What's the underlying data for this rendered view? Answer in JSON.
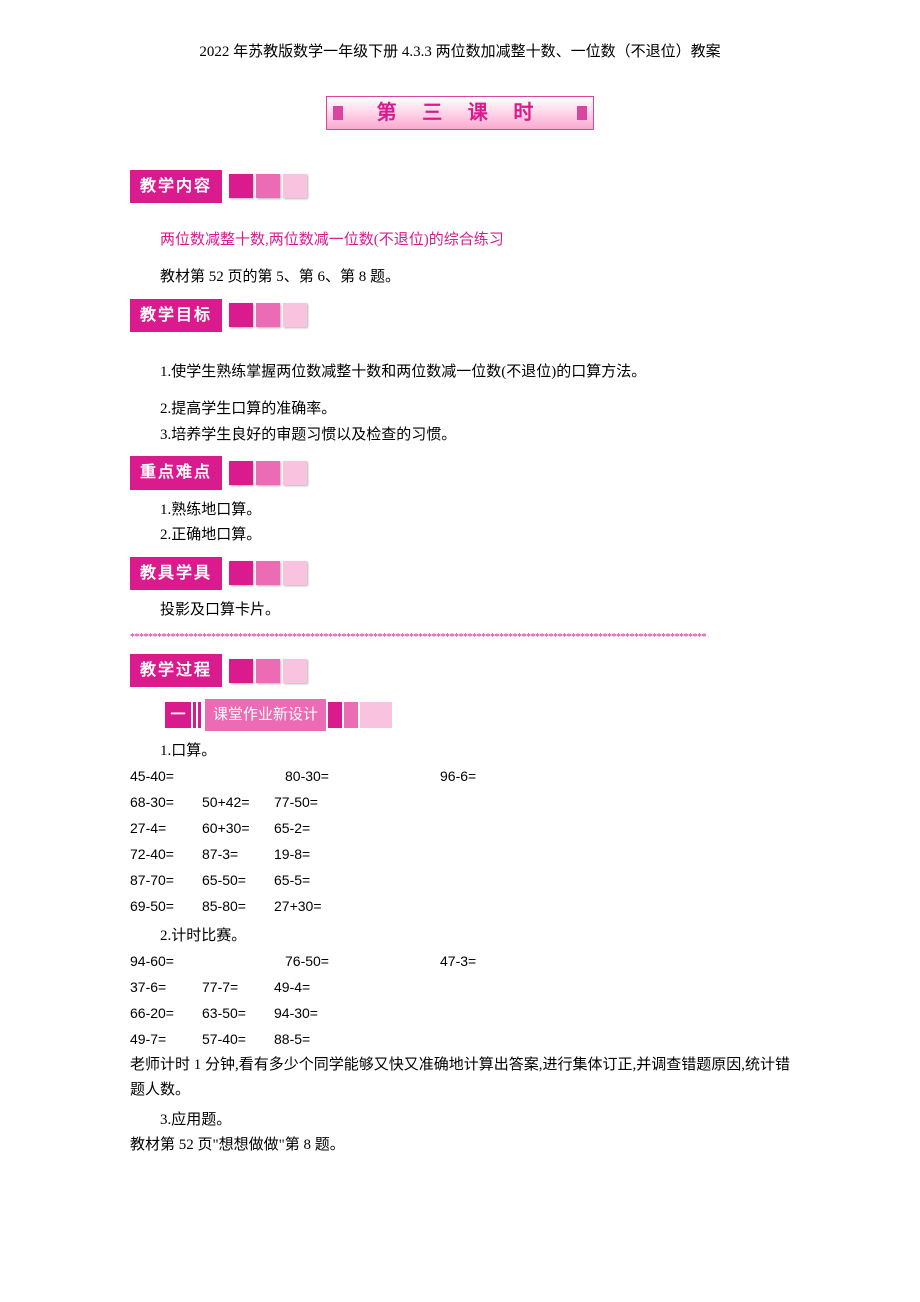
{
  "title": "2022 年苏教版数学一年级下册 4.3.3 两位数加减整十数、一位数（不退位）教案",
  "lesson_banner": "第 三 课 时",
  "sections": {
    "content_label": "教学内容",
    "goals_label": "教学目标",
    "keypoints_label": "重点难点",
    "tools_label": "教具学具",
    "process_label": "教学过程"
  },
  "subtitle": "两位数减整十数,两位数减一位数(不退位)的综合练习",
  "textbook_ref": "教材第 52 页的第 5、第 6、第 8 题。",
  "goals": [
    "1.使学生熟练掌握两位数减整十数和两位数减一位数(不退位)的口算方法。",
    "2.提高学生口算的准确率。",
    "3.培养学生良好的审题习惯以及检查的习惯。"
  ],
  "keypoints": [
    "1.熟练地口算。",
    "2.正确地口算。"
  ],
  "tools": "投影及口算卡片。",
  "divider": "********************************************************************************************************************************",
  "subsection": {
    "num": "一",
    "label": "课堂作业新设计"
  },
  "items": {
    "q1_head": "1.口算。",
    "q1_rows": [
      [
        {
          "t": "45-40=",
          "w": true
        },
        {
          "t": "80-30=",
          "w": true
        },
        {
          "t": "96-6="
        }
      ],
      [
        {
          "t": "68-30="
        },
        {
          "t": "50+42="
        },
        {
          "t": "77-50="
        }
      ],
      [
        {
          "t": "27-4="
        },
        {
          "t": "60+30="
        },
        {
          "t": "65-2="
        }
      ],
      [
        {
          "t": "72-40="
        },
        {
          "t": "87-3="
        },
        {
          "t": "19-8="
        }
      ],
      [
        {
          "t": "87-70="
        },
        {
          "t": "65-50="
        },
        {
          "t": "65-5="
        }
      ],
      [
        {
          "t": "69-50="
        },
        {
          "t": "85-80="
        },
        {
          "t": "27+30="
        }
      ]
    ],
    "q2_head": "2.计时比赛。",
    "q2_rows": [
      [
        {
          "t": "94-60=",
          "w": true
        },
        {
          "t": "76-50=",
          "w": true
        },
        {
          "t": "47-3="
        }
      ],
      [
        {
          "t": "37-6="
        },
        {
          "t": "77-7="
        },
        {
          "t": "49-4="
        }
      ],
      [
        {
          "t": "66-20="
        },
        {
          "t": "63-50="
        },
        {
          "t": "94-30="
        }
      ],
      [
        {
          "t": "49-7="
        },
        {
          "t": "57-40="
        },
        {
          "t": "88-5="
        }
      ]
    ],
    "q2_note": "老师计时 1 分钟,看有多少个同学能够又快又准确地计算出答案,进行集体订正,并调查错题原因,统计错题人数。",
    "q3_head": "3.应用题。",
    "q3_ref": "教材第 52 页\"想想做做\"第 8 题。"
  },
  "colors": {
    "accent": "#d91b8e",
    "accent_mid": "#ec6bb5",
    "accent_light": "#f9c2de"
  }
}
